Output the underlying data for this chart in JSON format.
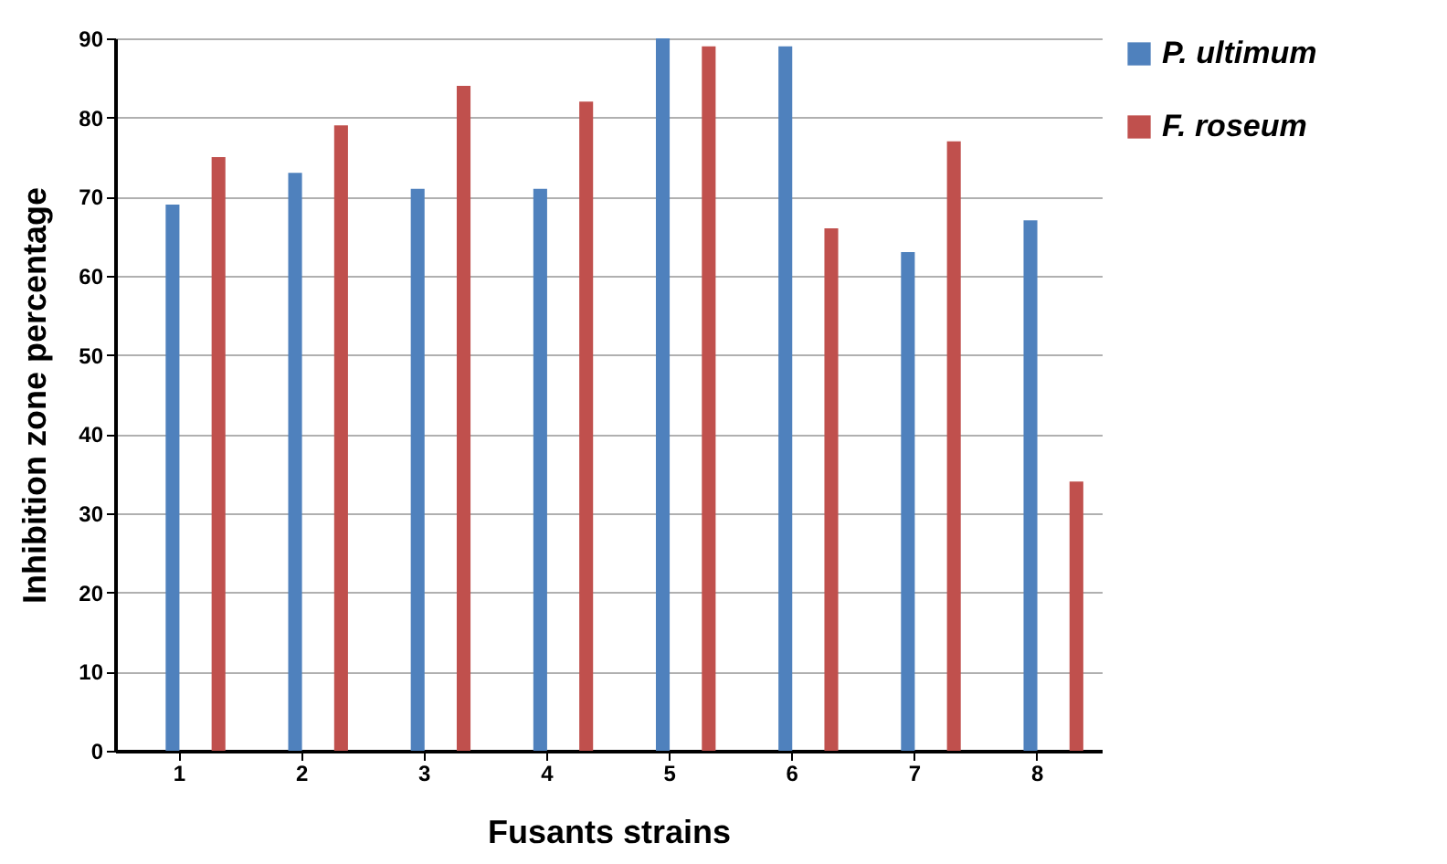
{
  "chart_data": {
    "type": "bar",
    "xlabel": "Fusants strains",
    "ylabel": "Inhibition zone percentage",
    "categories": [
      "1",
      "2",
      "3",
      "4",
      "5",
      "6",
      "7",
      "8"
    ],
    "series": [
      {
        "name": "P. ultimum",
        "color": "#4f81bd",
        "values": [
          69,
          73,
          71,
          71,
          90,
          89,
          63,
          67
        ]
      },
      {
        "name": "F. roseum",
        "color": "#c0504d",
        "values": [
          75,
          79,
          84,
          82,
          89,
          66,
          77,
          34
        ]
      }
    ],
    "ylim": [
      0,
      90
    ],
    "yticks": [
      0,
      10,
      20,
      30,
      40,
      50,
      60,
      70,
      80,
      90
    ],
    "grid": "y",
    "legend": "right"
  }
}
